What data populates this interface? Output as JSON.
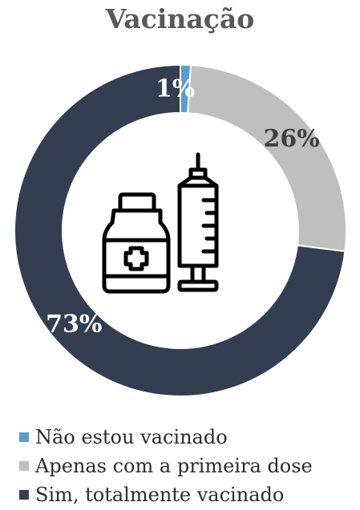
{
  "chart_data": {
    "type": "pie",
    "title": "Vacinação",
    "categories": [
      "Não estou vacinado",
      "Apenas com a primeira dose",
      "Sim, totalmente vacinado"
    ],
    "values": [
      1,
      26,
      73
    ],
    "labels": [
      "1%",
      "26%",
      "73%"
    ],
    "colors": [
      "#5b9bd5",
      "#bfbfbf",
      "#333f50"
    ],
    "legend": "bottom",
    "center_icon": "vaccine-bottle-and-syringe-icon"
  }
}
